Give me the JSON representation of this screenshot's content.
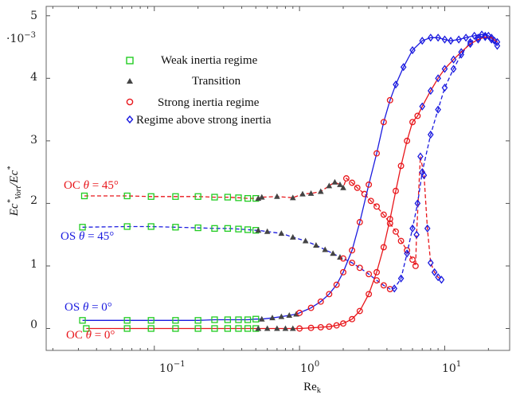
{
  "chart_data": {
    "type": "scatter",
    "title": "",
    "xlabel": "Re_k",
    "ylabel": "Ec*_Vort / Ec*",
    "xscale": "log",
    "xlim": [
      0.018,
      28
    ],
    "ylim": [
      -0.35,
      5.15
    ],
    "y_multiplier": "·10^-3",
    "xticks": [
      0.1,
      1,
      10
    ],
    "xtick_labels": [
      "10^-1",
      "10^0",
      "10^1"
    ],
    "yticks": [
      0,
      1,
      2,
      3,
      4,
      5
    ],
    "ytick_labels": [
      "0",
      "1",
      "2",
      "3",
      "4",
      "5"
    ],
    "grid": false,
    "legend": {
      "placement": "upper-left",
      "entries": [
        {
          "label": "Weak inertia regime",
          "marker": "square",
          "color": "#22cc22"
        },
        {
          "label": "Transition",
          "marker": "triangle",
          "color": "#444444"
        },
        {
          "label": "Strong inertia regime",
          "marker": "circle",
          "color": "#e8161b"
        },
        {
          "label": "Regime above strong inertia",
          "marker": "diamond",
          "color": "#1a1adf"
        }
      ]
    },
    "annotations": [
      {
        "label": "OC θ = 45°",
        "color": "#e8161b"
      },
      {
        "label": "OS θ = 45°",
        "color": "#1a1adf"
      },
      {
        "label": "OS θ = 0°",
        "color": "#1a1adf"
      },
      {
        "label": "OC θ = 0°",
        "color": "#e8161b"
      }
    ],
    "series": [
      {
        "case": "OC, theta=45 deg",
        "line_color": "#e8161b",
        "line_style": "dashed",
        "weak": {
          "x": [
            0.033,
            0.065,
            0.095,
            0.14,
            0.2,
            0.26,
            0.32,
            0.38,
            0.44,
            0.5
          ],
          "y": [
            2.12,
            2.12,
            2.11,
            2.11,
            2.11,
            2.1,
            2.1,
            2.09,
            2.08,
            2.08
          ]
        },
        "transition": {
          "x": [
            0.52,
            0.55,
            0.7,
            0.9,
            1.05,
            1.2,
            1.4,
            1.6,
            1.75,
            1.9,
            2.0
          ],
          "y": [
            2.08,
            2.1,
            2.11,
            2.09,
            2.15,
            2.16,
            2.19,
            2.28,
            2.34,
            2.3,
            2.25
          ]
        },
        "strong": {
          "x": [
            2.1,
            2.3,
            2.5,
            2.8,
            3.1,
            3.4,
            3.8,
            4.2,
            4.6,
            5.0,
            5.5,
            6.0,
            6.3
          ],
          "y": [
            2.4,
            2.33,
            2.25,
            2.15,
            2.04,
            1.95,
            1.82,
            1.68,
            1.55,
            1.4,
            1.25,
            1.1,
            1.0
          ]
        },
        "above": {
          "x": [
            6.4,
            6.8,
            7.2,
            7.6,
            8.0,
            8.5,
            9.0,
            9.5
          ],
          "y": [
            1.5,
            2.75,
            2.45,
            1.6,
            1.05,
            0.9,
            0.82,
            0.78
          ]
        }
      },
      {
        "case": "OS, theta=45 deg",
        "line_color": "#1a1adf",
        "line_style": "dashed",
        "weak": {
          "x": [
            0.032,
            0.065,
            0.095,
            0.14,
            0.2,
            0.26,
            0.32,
            0.38,
            0.44,
            0.5
          ],
          "y": [
            1.62,
            1.63,
            1.63,
            1.62,
            1.61,
            1.6,
            1.6,
            1.59,
            1.58,
            1.57
          ]
        },
        "transition": {
          "x": [
            0.52,
            0.6,
            0.75,
            0.9,
            1.1,
            1.3,
            1.5,
            1.7,
            1.9
          ],
          "y": [
            1.57,
            1.55,
            1.52,
            1.46,
            1.4,
            1.33,
            1.26,
            1.2,
            1.14
          ]
        },
        "strong": {
          "x": [
            2.0,
            2.3,
            2.6,
            3.0,
            3.4,
            3.8,
            4.2
          ],
          "y": [
            1.12,
            1.05,
            0.97,
            0.87,
            0.77,
            0.69,
            0.63
          ]
        },
        "above": {
          "x": [
            4.5,
            5.0,
            5.5,
            6.0,
            6.5,
            7.0,
            8.0,
            9.0,
            10.0,
            11.5,
            13.0,
            15.0,
            17.0,
            19.0,
            21.0,
            23.0
          ],
          "y": [
            0.64,
            0.8,
            1.2,
            1.6,
            2.0,
            2.5,
            3.1,
            3.5,
            3.85,
            4.15,
            4.38,
            4.58,
            4.65,
            4.68,
            4.62,
            4.52
          ]
        }
      },
      {
        "case": "OS, theta=0 deg",
        "line_color": "#1a1adf",
        "line_style": "solid",
        "weak": {
          "x": [
            0.032,
            0.065,
            0.095,
            0.14,
            0.2,
            0.26,
            0.32,
            0.38,
            0.44,
            0.5
          ],
          "y": [
            0.13,
            0.13,
            0.13,
            0.13,
            0.13,
            0.14,
            0.14,
            0.14,
            0.14,
            0.15
          ]
        },
        "transition": {
          "x": [
            0.55,
            0.65,
            0.75,
            0.85,
            0.95
          ],
          "y": [
            0.15,
            0.17,
            0.19,
            0.21,
            0.23
          ]
        },
        "strong": {
          "x": [
            1.0,
            1.2,
            1.4,
            1.6,
            1.8,
            2.0,
            2.3,
            2.6,
            3.0,
            3.4,
            3.8,
            4.2
          ],
          "y": [
            0.25,
            0.33,
            0.43,
            0.55,
            0.7,
            0.9,
            1.25,
            1.7,
            2.3,
            2.8,
            3.3,
            3.65
          ]
        },
        "above": {
          "x": [
            4.6,
            5.2,
            6.0,
            7.0,
            8.0,
            9.0,
            10.0,
            11.0,
            12.5,
            14.0,
            16.0,
            18.0,
            20.0,
            22.0
          ],
          "y": [
            3.9,
            4.18,
            4.45,
            4.6,
            4.65,
            4.65,
            4.62,
            4.6,
            4.62,
            4.65,
            4.68,
            4.7,
            4.68,
            4.6
          ]
        }
      },
      {
        "case": "OC, theta=0 deg",
        "line_color": "#e8161b",
        "line_style": "solid",
        "weak": {
          "x": [
            0.034,
            0.065,
            0.095,
            0.14,
            0.2,
            0.26,
            0.32,
            0.38,
            0.44,
            0.5
          ],
          "y": [
            0.0,
            0.0,
            0.0,
            0.0,
            0.0,
            0.0,
            0.0,
            0.0,
            0.0,
            0.0
          ]
        },
        "transition": {
          "x": [
            0.52,
            0.6,
            0.7,
            0.8,
            0.9
          ],
          "y": [
            0.0,
            0.0,
            0.0,
            0.0,
            0.0
          ]
        },
        "strong": {
          "x": [
            1.0,
            1.2,
            1.4,
            1.6,
            1.8,
            2.0,
            2.3,
            2.6,
            3.0,
            3.4,
            3.8,
            4.2,
            4.6,
            5.0,
            5.5,
            6.0,
            6.5
          ],
          "y": [
            0.0,
            0.01,
            0.02,
            0.03,
            0.05,
            0.08,
            0.15,
            0.28,
            0.55,
            0.9,
            1.3,
            1.75,
            2.2,
            2.6,
            3.0,
            3.3,
            3.4
          ]
        },
        "above": {
          "x": [
            7.0,
            8.0,
            9.0,
            10.0,
            11.5,
            13.0,
            15.0,
            17.0,
            19.0,
            21.0,
            23.0
          ],
          "y": [
            3.55,
            3.8,
            4.0,
            4.15,
            4.3,
            4.42,
            4.55,
            4.62,
            4.66,
            4.65,
            4.58
          ]
        }
      }
    ]
  }
}
